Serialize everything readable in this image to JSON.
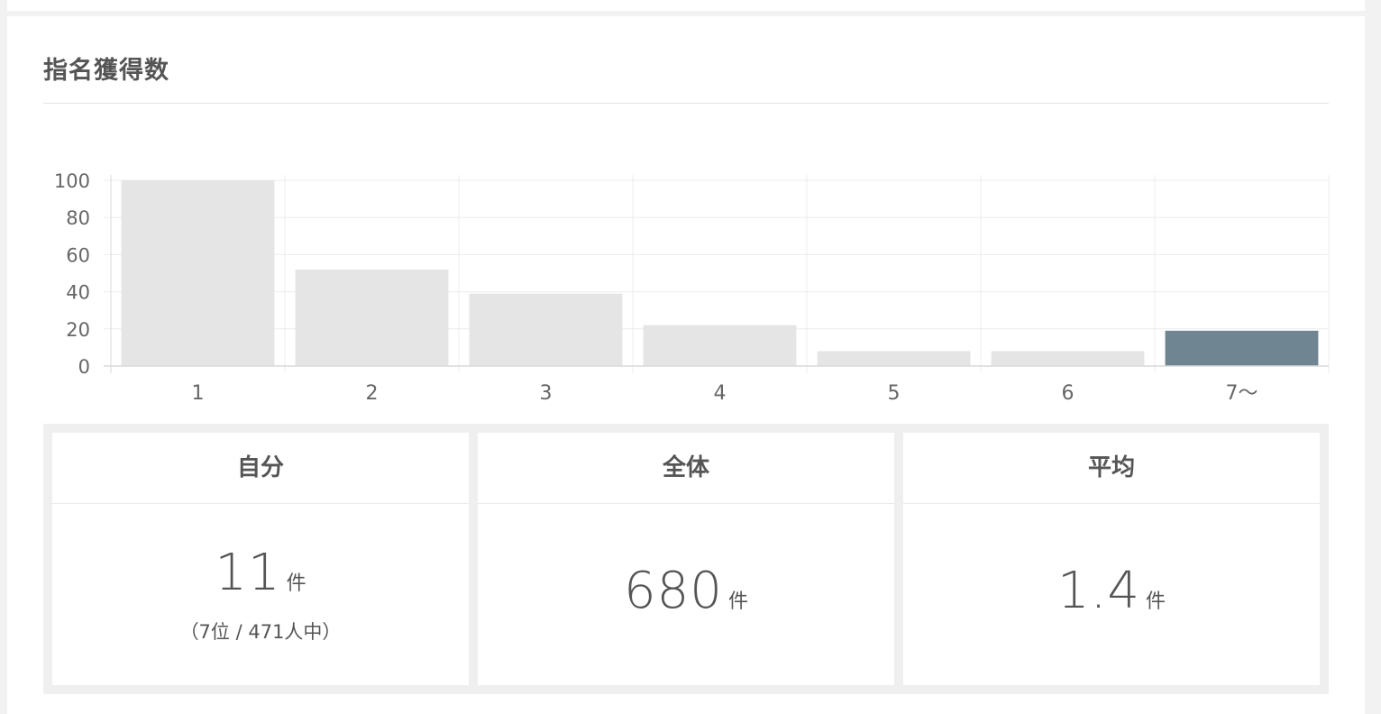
{
  "title": "指名獲得数",
  "chart_data": {
    "type": "bar",
    "categories": [
      "1",
      "2",
      "3",
      "4",
      "5",
      "6",
      "7〜"
    ],
    "values": [
      100,
      52,
      39,
      22,
      8,
      8,
      19
    ],
    "ylim": [
      0,
      100
    ],
    "yticks": [
      "0",
      "20",
      "40",
      "60",
      "80",
      "100"
    ],
    "grid": true,
    "highlight_index": 6,
    "colors": {
      "bar": "#e5e5e5",
      "highlight": "#6f8591",
      "grid": "#ececec",
      "axis": "#d9d9d9"
    }
  },
  "stats": [
    {
      "label": "自分",
      "value": "11",
      "unit": "件",
      "sub": "（7位 / 471人中）"
    },
    {
      "label": "全体",
      "value": "680",
      "unit": "件",
      "sub": ""
    },
    {
      "label": "平均",
      "value": "1.4",
      "unit": "件",
      "sub": ""
    }
  ]
}
